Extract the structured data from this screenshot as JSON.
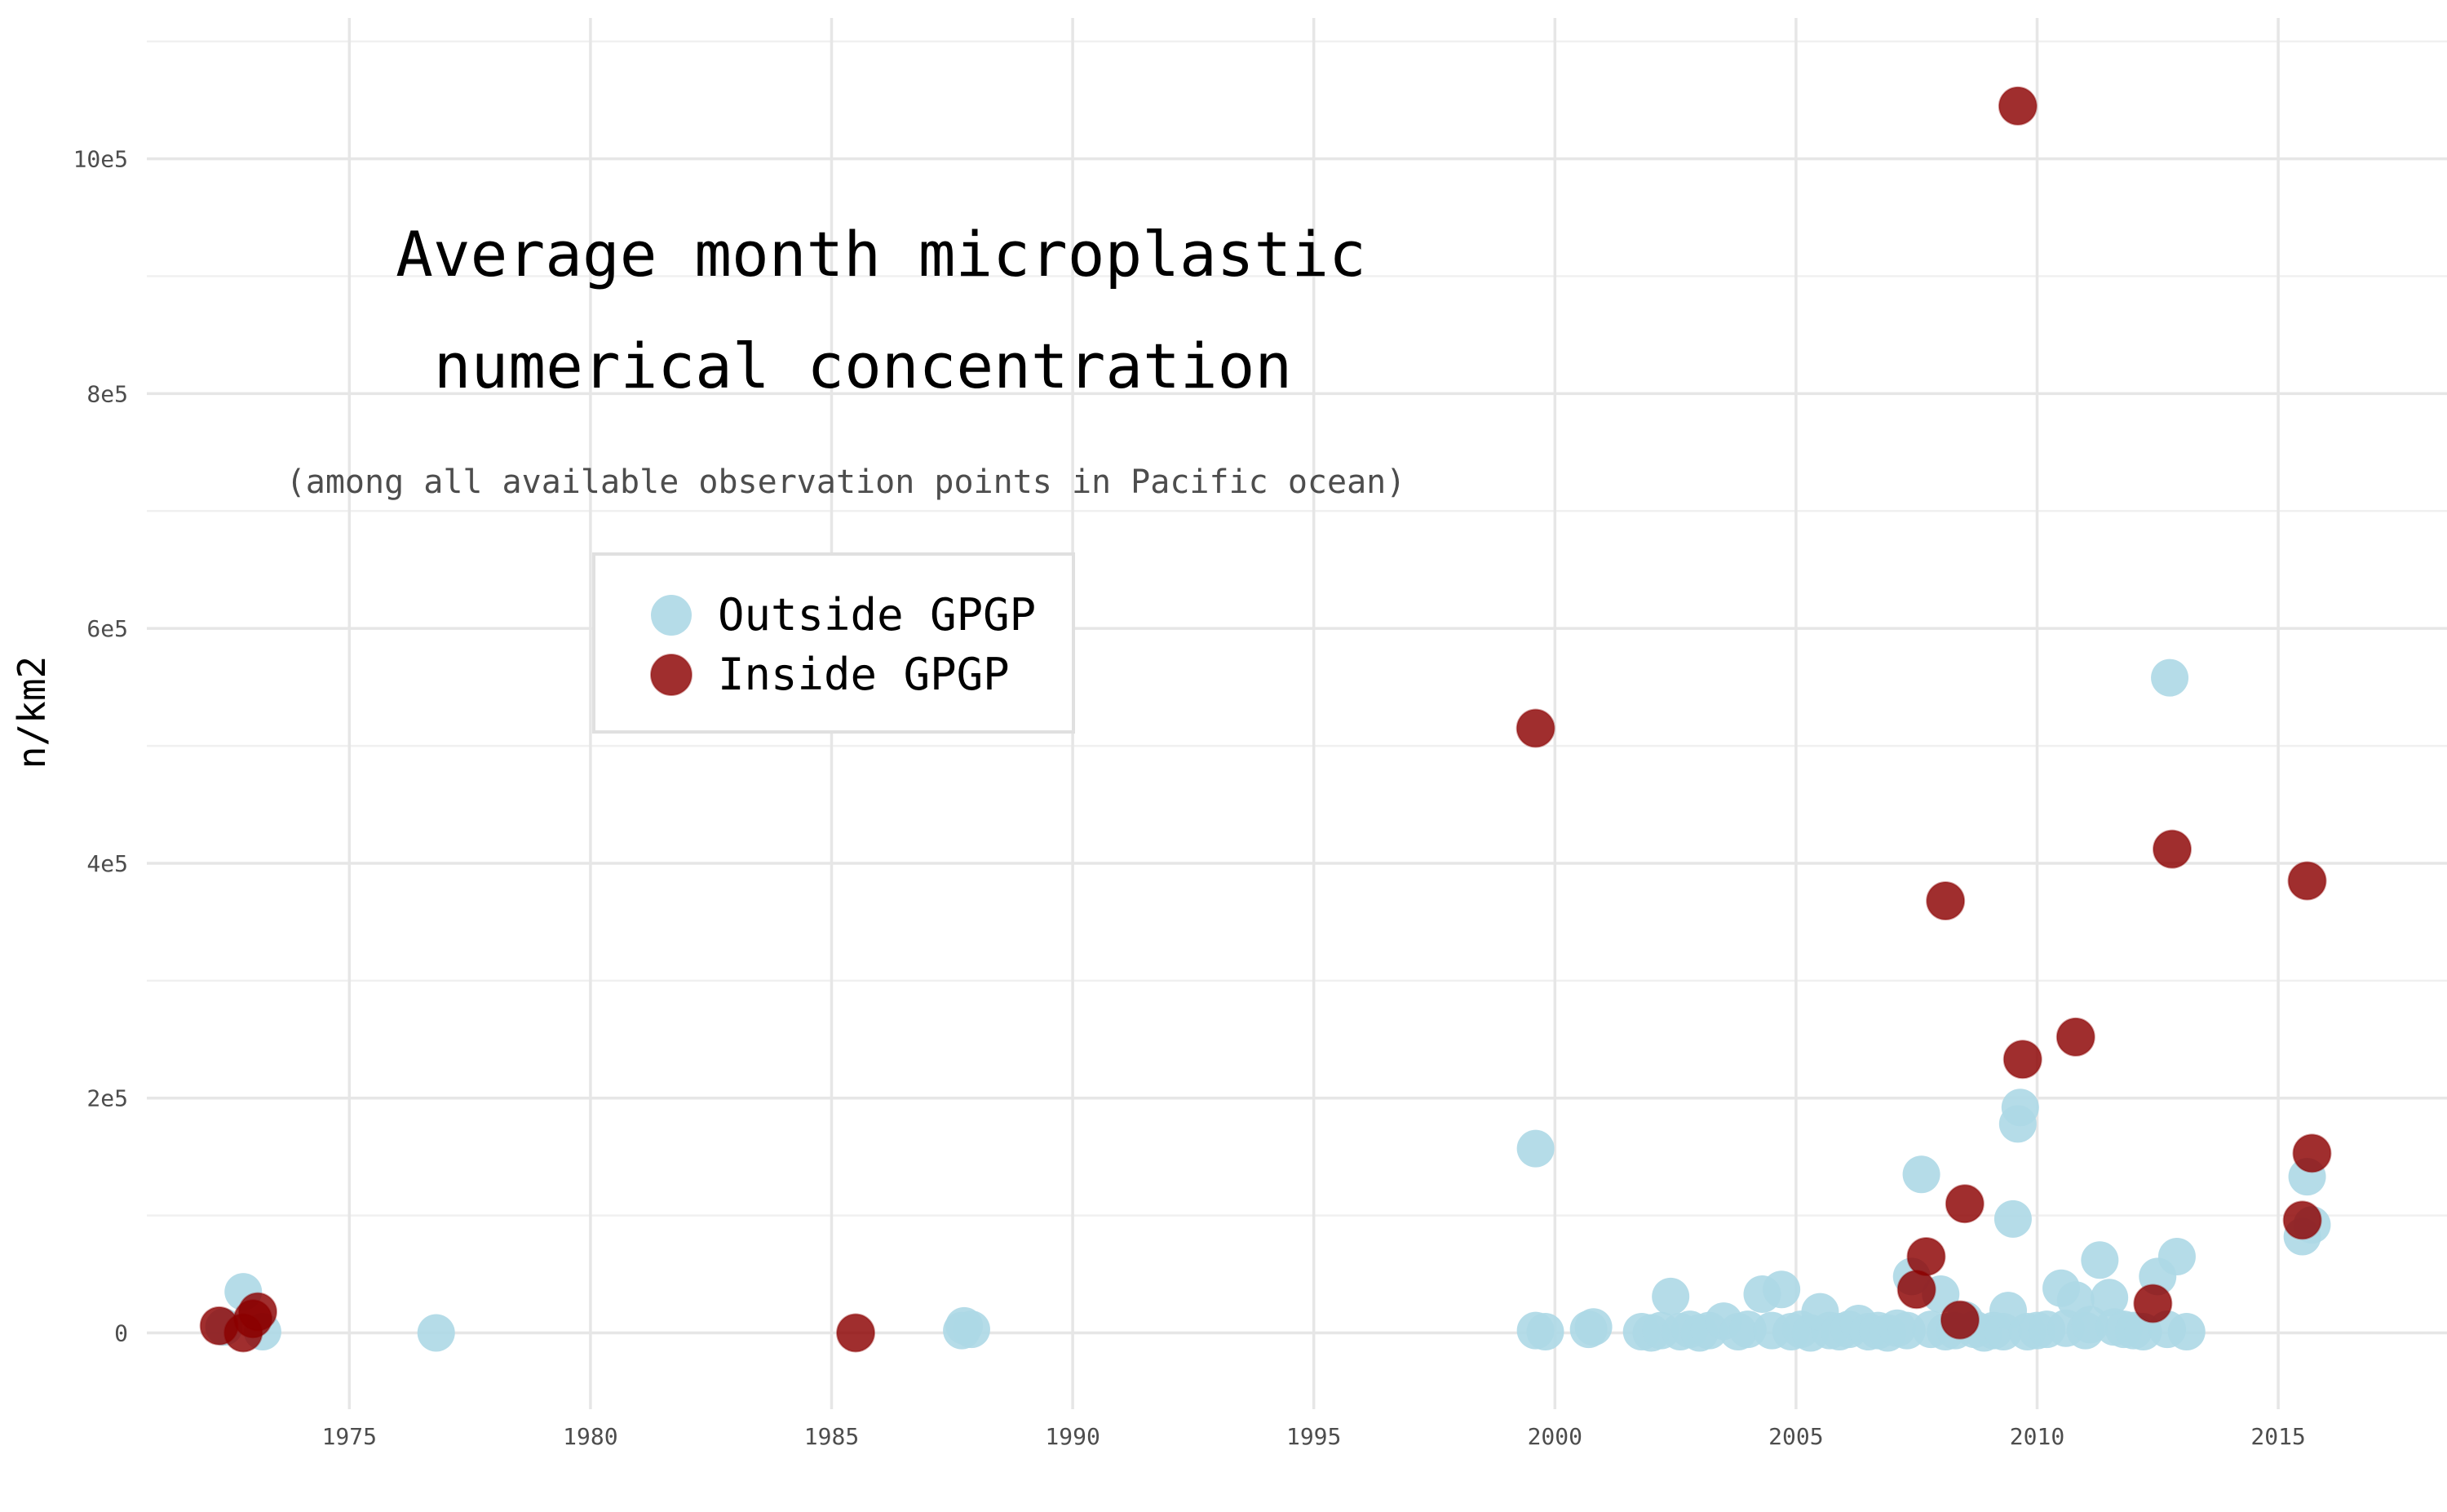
{
  "chart_data": {
    "type": "scatter",
    "title_lines": [
      "Average month microplastic",
      "numerical concentration"
    ],
    "subtitle": "(among all available observation points in Pacific ocean)",
    "xlabel": "",
    "ylabel": "n/km2",
    "xlim": [
      1970.8,
      2018.5
    ],
    "ylim": [
      -65000,
      1120000
    ],
    "x_ticks": [
      1975,
      1980,
      1985,
      1990,
      1995,
      2000,
      2005,
      2010,
      2015
    ],
    "y_ticks": [
      0,
      200000,
      400000,
      600000,
      800000,
      1000000
    ],
    "y_tick_labels": [
      "0",
      "2e5",
      "4e5",
      "6e5",
      "8e5",
      "10e5"
    ],
    "grid": true,
    "legend": {
      "placement": "top-left inset"
    },
    "colors": {
      "outside": "#add8e6",
      "inside": "#8b0000"
    },
    "series": [
      {
        "name": "Outside GPGP",
        "color": "#add8e6",
        "points": [
          [
            1972.4,
            5000
          ],
          [
            1972.8,
            35000
          ],
          [
            1973.2,
            1000
          ],
          [
            1976.8,
            0
          ],
          [
            1987.7,
            2000
          ],
          [
            1987.9,
            3000
          ],
          [
            1987.75,
            6000
          ],
          [
            1999.6,
            157000
          ],
          [
            1999.6,
            2000
          ],
          [
            1999.8,
            1000
          ],
          [
            2000.7,
            3000
          ],
          [
            2000.8,
            5000
          ],
          [
            2001.8,
            1000
          ],
          [
            2002.0,
            0
          ],
          [
            2002.2,
            2000
          ],
          [
            2002.4,
            31000
          ],
          [
            2002.6,
            1000
          ],
          [
            2002.8,
            3000
          ],
          [
            2003.0,
            0
          ],
          [
            2003.2,
            2000
          ],
          [
            2003.5,
            10000
          ],
          [
            2003.8,
            1000
          ],
          [
            2004.0,
            3000
          ],
          [
            2004.3,
            33000
          ],
          [
            2004.5,
            2000
          ],
          [
            2004.7,
            37000
          ],
          [
            2004.9,
            1000
          ],
          [
            2005.1,
            3000
          ],
          [
            2005.3,
            0
          ],
          [
            2005.5,
            18000
          ],
          [
            2005.7,
            2000
          ],
          [
            2005.9,
            1000
          ],
          [
            2006.1,
            3000
          ],
          [
            2006.3,
            8000
          ],
          [
            2006.5,
            1000
          ],
          [
            2006.7,
            2000
          ],
          [
            2006.9,
            0
          ],
          [
            2007.1,
            4000
          ],
          [
            2007.3,
            2000
          ],
          [
            2007.4,
            48000
          ],
          [
            2007.6,
            135000
          ],
          [
            2007.8,
            3000
          ],
          [
            2008.0,
            33000
          ],
          [
            2008.1,
            1000
          ],
          [
            2008.3,
            2000
          ],
          [
            2008.5,
            11000
          ],
          [
            2008.7,
            3000
          ],
          [
            2008.9,
            0
          ],
          [
            2009.1,
            2000
          ],
          [
            2009.3,
            1000
          ],
          [
            2009.4,
            19000
          ],
          [
            2009.5,
            97000
          ],
          [
            2009.6,
            178000
          ],
          [
            2009.65,
            192000
          ],
          [
            2009.8,
            1000
          ],
          [
            2010.0,
            2000
          ],
          [
            2010.2,
            3000
          ],
          [
            2010.5,
            38000
          ],
          [
            2010.6,
            4000
          ],
          [
            2010.8,
            28000
          ],
          [
            2011.0,
            2000
          ],
          [
            2011.1,
            7000
          ],
          [
            2011.3,
            62000
          ],
          [
            2011.5,
            30000
          ],
          [
            2011.6,
            5000
          ],
          [
            2011.8,
            3000
          ],
          [
            2012.0,
            2000
          ],
          [
            2012.2,
            1000
          ],
          [
            2012.5,
            48000
          ],
          [
            2012.7,
            3000
          ],
          [
            2012.75,
            558000
          ],
          [
            2012.9,
            65000
          ],
          [
            2013.1,
            1000
          ],
          [
            2015.5,
            82000
          ],
          [
            2015.6,
            133000
          ],
          [
            2015.7,
            92000
          ]
        ]
      },
      {
        "name": "Inside GPGP",
        "color": "#8b0000",
        "points": [
          [
            1972.3,
            6000
          ],
          [
            1972.8,
            0
          ],
          [
            1973.0,
            12000
          ],
          [
            1973.1,
            18000
          ],
          [
            1985.5,
            0
          ],
          [
            1999.6,
            515000
          ],
          [
            2007.5,
            37000
          ],
          [
            2007.7,
            65000
          ],
          [
            2008.1,
            368000
          ],
          [
            2008.5,
            110000
          ],
          [
            2008.4,
            11000
          ],
          [
            2009.6,
            1045000
          ],
          [
            2009.7,
            233000
          ],
          [
            2010.8,
            252000
          ],
          [
            2012.4,
            25000
          ],
          [
            2012.8,
            412000
          ],
          [
            2015.5,
            96000
          ],
          [
            2015.6,
            385000
          ],
          [
            2015.7,
            153000
          ]
        ]
      }
    ]
  }
}
